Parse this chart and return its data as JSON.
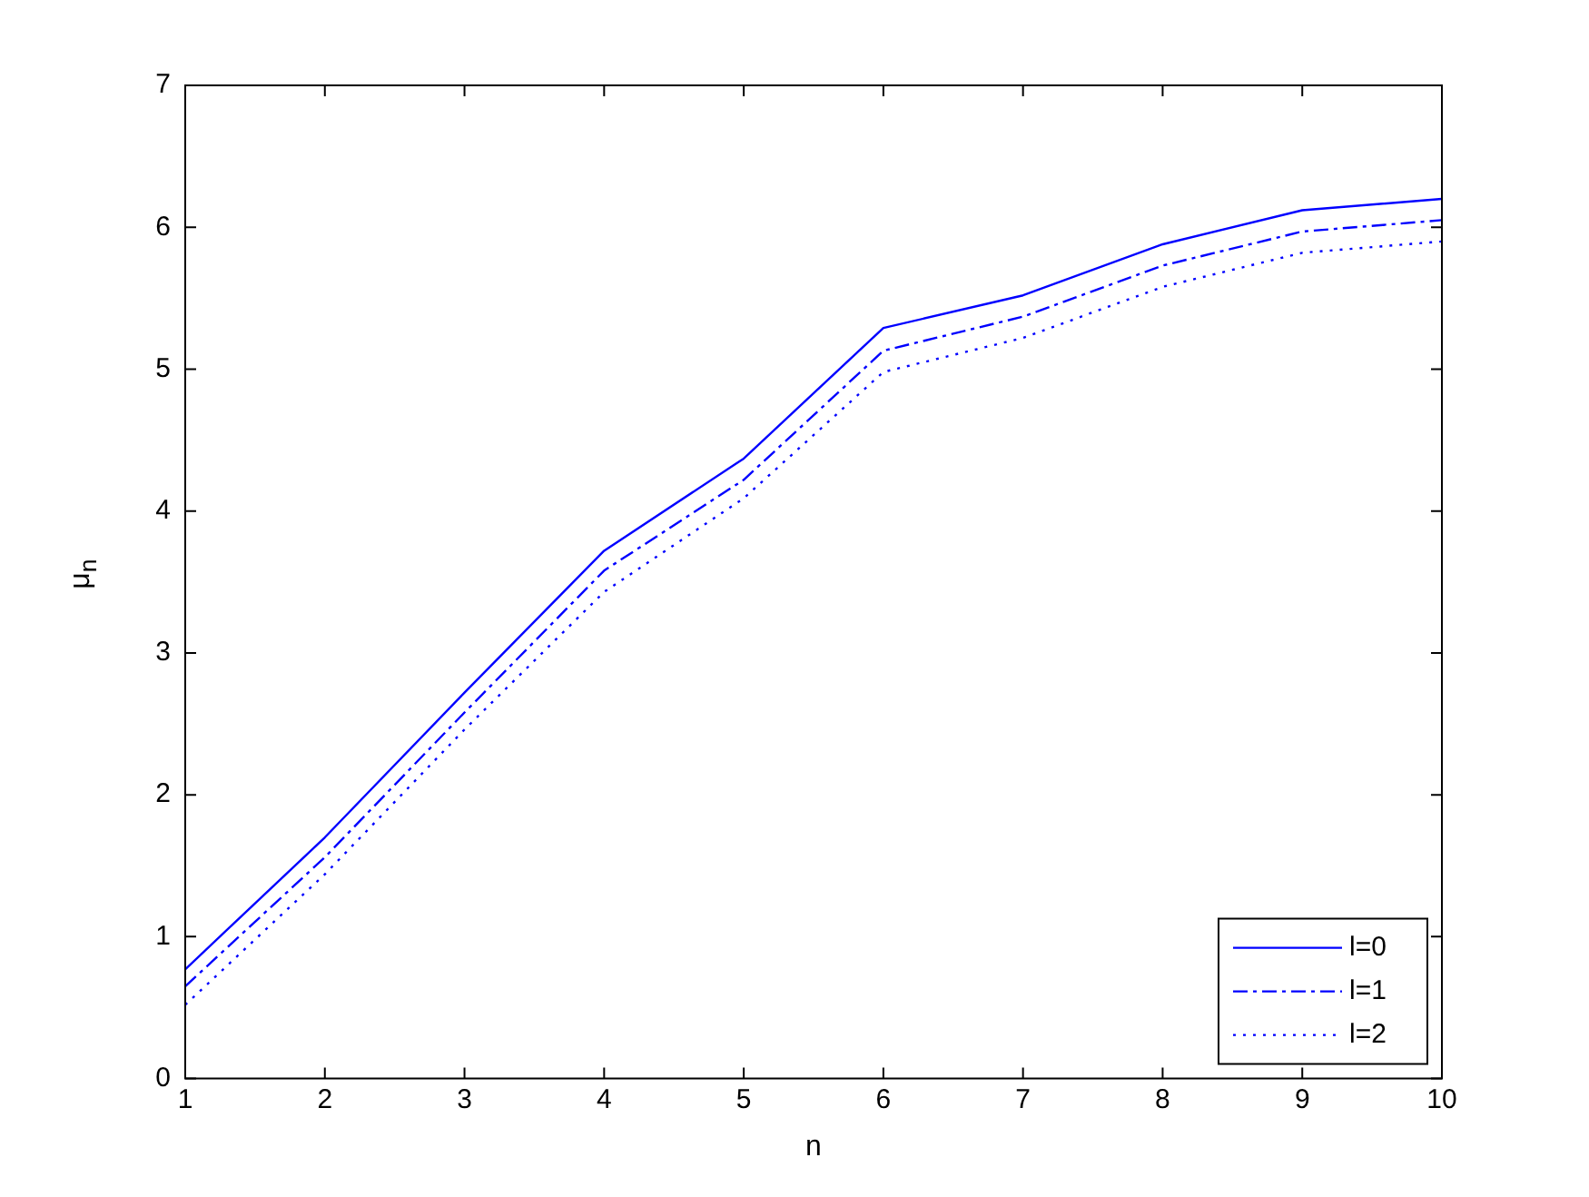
{
  "chart_data": {
    "type": "line",
    "xlabel": "n",
    "ylabel": "μ$_{n}$",
    "x": [
      1,
      2,
      3,
      4,
      5,
      6,
      7,
      8,
      9,
      10
    ],
    "xlim": [
      1,
      10
    ],
    "xticks": [
      1,
      2,
      3,
      4,
      5,
      6,
      7,
      8,
      9,
      10
    ],
    "ylim": [
      0,
      7
    ],
    "yticks": [
      0,
      1,
      2,
      3,
      4,
      5,
      6,
      7
    ],
    "grid": false,
    "legend": "bottom right",
    "marker": "none",
    "series": [
      {
        "name": "l=0",
        "color": "#0000ff",
        "line_style": "solid",
        "values": [
          0.77,
          1.7,
          2.72,
          3.72,
          4.37,
          5.29,
          5.52,
          5.88,
          6.12,
          6.2
        ]
      },
      {
        "name": "l=1",
        "color": "#0000ff",
        "line_style": "dashed",
        "values": [
          0.65,
          1.56,
          2.58,
          3.58,
          4.22,
          5.13,
          5.37,
          5.73,
          5.97,
          6.05
        ]
      },
      {
        "name": "l=2",
        "color": "#0000ff",
        "line_style": "dotted",
        "values": [
          0.52,
          1.44,
          2.46,
          3.43,
          4.09,
          4.98,
          5.22,
          5.58,
          5.82,
          5.9
        ]
      }
    ]
  }
}
